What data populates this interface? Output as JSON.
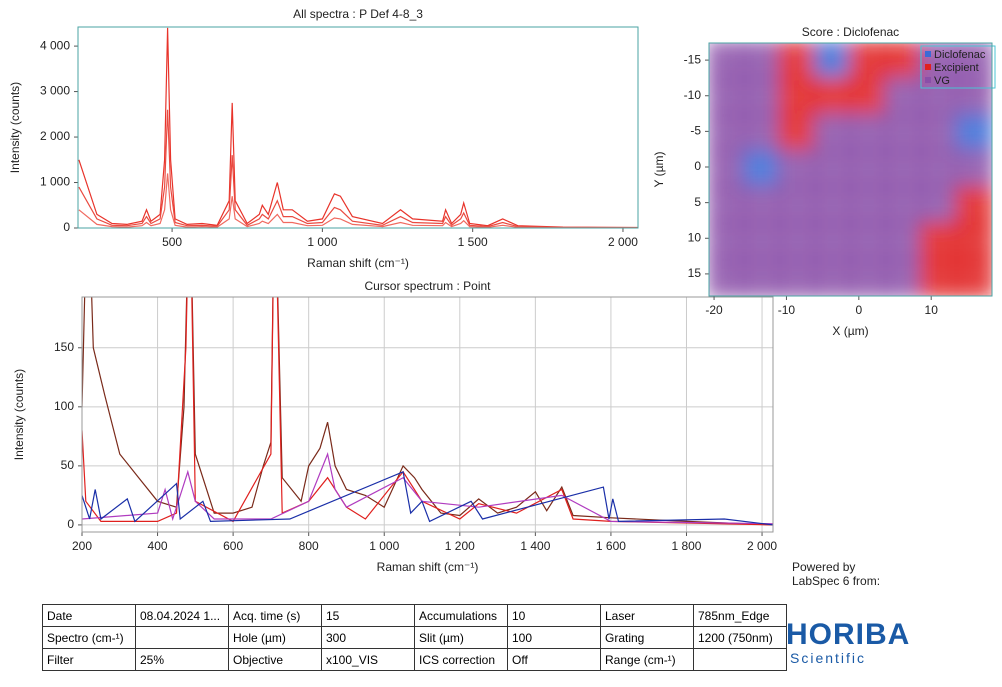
{
  "chart_data": [
    {
      "type": "line",
      "title": "All spectra : P Def 4-8_3",
      "xlabel": "Raman shift (cm⁻¹)",
      "ylabel": "Intensity (counts)",
      "xlim": [
        187,
        2050
      ],
      "ylim": [
        0,
        4420
      ],
      "xticks": [
        500,
        {
          "value": 1000,
          "label": "1 000"
        },
        {
          "value": 1500,
          "label": "1 500"
        },
        {
          "value": 2000,
          "label": "2 000"
        }
      ],
      "yticks": [
        0,
        {
          "value": 1000,
          "label": "1 000"
        },
        {
          "value": 2000,
          "label": "2 000"
        },
        {
          "value": 3000,
          "label": "3 000"
        },
        {
          "value": 4000,
          "label": "4 000"
        }
      ],
      "grid": false,
      "x": [
        190,
        250,
        300,
        350,
        400,
        415,
        430,
        460,
        475,
        485,
        495,
        510,
        550,
        600,
        650,
        690,
        700,
        710,
        750,
        790,
        800,
        820,
        850,
        870,
        900,
        950,
        1000,
        1040,
        1060,
        1100,
        1200,
        1260,
        1300,
        1400,
        1410,
        1430,
        1460,
        1470,
        1490,
        1550,
        1600,
        1650,
        1800,
        2050
      ],
      "series": [
        {
          "color": "#e8332a",
          "values": [
            1500,
            300,
            100,
            80,
            150,
            400,
            150,
            300,
            1500,
            4400,
            1500,
            200,
            80,
            100,
            60,
            600,
            2750,
            600,
            100,
            300,
            500,
            300,
            1000,
            400,
            400,
            150,
            200,
            750,
            700,
            250,
            100,
            400,
            200,
            150,
            400,
            100,
            300,
            550,
            100,
            50,
            200,
            50,
            20,
            10
          ]
        },
        {
          "color": "#ea4a40",
          "values": [
            900,
            200,
            60,
            50,
            100,
            250,
            100,
            200,
            900,
            2600,
            900,
            120,
            50,
            60,
            40,
            400,
            1600,
            400,
            60,
            200,
            300,
            200,
            600,
            250,
            250,
            100,
            120,
            450,
            400,
            150,
            60,
            250,
            120,
            100,
            250,
            60,
            200,
            330,
            60,
            30,
            120,
            30,
            12,
            5
          ]
        },
        {
          "color": "#f06a60",
          "values": [
            400,
            80,
            30,
            20,
            50,
            120,
            50,
            100,
            400,
            1200,
            400,
            60,
            20,
            30,
            20,
            200,
            700,
            200,
            30,
            100,
            150,
            100,
            300,
            120,
            120,
            50,
            60,
            220,
            200,
            80,
            30,
            120,
            60,
            50,
            120,
            30,
            100,
            160,
            30,
            15,
            60,
            15,
            6,
            3
          ]
        }
      ]
    },
    {
      "type": "line",
      "title": "Cursor spectrum : Point",
      "xlabel": "Raman shift (cm⁻¹)",
      "ylabel": "Intensity (counts)",
      "xlim": [
        200,
        2029
      ],
      "ylim": [
        -6,
        193
      ],
      "xticks": [
        200,
        400,
        600,
        800,
        {
          "value": 1000,
          "label": "1 000"
        },
        {
          "value": 1200,
          "label": "1 200"
        },
        {
          "value": 1400,
          "label": "1 400"
        },
        {
          "value": 1600,
          "label": "1 600"
        },
        {
          "value": 1800,
          "label": "1 800"
        },
        {
          "value": 2000,
          "label": "2 000"
        }
      ],
      "yticks": [
        0,
        50,
        100,
        150
      ],
      "grid": true,
      "series": [
        {
          "color": "#7a2a1a",
          "x": [
            200,
            215,
            230,
            260,
            300,
            350,
            400,
            450,
            470,
            485,
            500,
            550,
            600,
            650,
            680,
            700,
            710,
            730,
            780,
            800,
            830,
            850,
            870,
            900,
            950,
            1000,
            1050,
            1080,
            1100,
            1150,
            1200,
            1250,
            1300,
            1350,
            1400,
            1430,
            1470,
            1500,
            1600,
            1800,
            2029
          ],
          "values": [
            100,
            300,
            150,
            110,
            60,
            40,
            20,
            15,
            100,
            300,
            60,
            10,
            10,
            15,
            50,
            70,
            300,
            40,
            20,
            50,
            65,
            87,
            50,
            30,
            25,
            15,
            50,
            40,
            30,
            10,
            8,
            22,
            10,
            15,
            28,
            12,
            32,
            8,
            6,
            3,
            0
          ]
        },
        {
          "color": "#e0201e",
          "x": [
            200,
            210,
            250,
            400,
            450,
            475,
            485,
            500,
            600,
            700,
            710,
            730,
            800,
            850,
            900,
            950,
            1050,
            1100,
            1200,
            1250,
            1350,
            1470,
            1500,
            1600,
            2029
          ],
          "values": [
            80,
            20,
            3,
            3,
            10,
            150,
            300,
            20,
            3,
            60,
            300,
            10,
            20,
            40,
            15,
            5,
            45,
            20,
            5,
            18,
            10,
            30,
            5,
            3,
            0
          ]
        },
        {
          "color": "#b03cc0",
          "x": [
            200,
            400,
            420,
            440,
            480,
            500,
            550,
            700,
            800,
            850,
            870,
            900,
            1050,
            1100,
            1250,
            1470,
            1600,
            2029
          ],
          "values": [
            5,
            10,
            30,
            5,
            45,
            20,
            5,
            5,
            20,
            60,
            30,
            15,
            40,
            20,
            15,
            25,
            3,
            1
          ]
        },
        {
          "color": "#1a2fa8",
          "x": [
            200,
            220,
            235,
            250,
            320,
            340,
            450,
            460,
            520,
            540,
            750,
            1050,
            1070,
            1100,
            1120,
            1230,
            1260,
            1580,
            1595,
            1605,
            1620,
            1900,
            2029
          ],
          "values": [
            25,
            5,
            30,
            5,
            22,
            3,
            35,
            5,
            20,
            3,
            5,
            45,
            10,
            20,
            3,
            20,
            5,
            32,
            5,
            22,
            3,
            5,
            0
          ]
        }
      ]
    },
    {
      "type": "heatmap",
      "title": "Score : Diclofenac",
      "xlabel": "X (µm)",
      "ylabel": "Y (µm)",
      "xlim": [
        -20.7,
        18.4
      ],
      "ylim": [
        -17.4,
        18.1
      ],
      "invert_y": true,
      "xticks": [
        -20,
        -10,
        0,
        10
      ],
      "yticks": [
        -15,
        -10,
        -5,
        0,
        5,
        10,
        15
      ],
      "legend": [
        {
          "name": "Diclofenac",
          "color": "#3a6bd6"
        },
        {
          "name": "Excipient",
          "color": "#e0201e"
        },
        {
          "name": "VG",
          "color": "#8a4fa8"
        }
      ],
      "z": [
        [
          2,
          2,
          1,
          0,
          1,
          1,
          2,
          2
        ],
        [
          2,
          2,
          1,
          1,
          1,
          2,
          2,
          2
        ],
        [
          2,
          2,
          1,
          2,
          2,
          2,
          2,
          0
        ],
        [
          2,
          0,
          2,
          2,
          2,
          2,
          2,
          2
        ],
        [
          2,
          2,
          2,
          2,
          2,
          2,
          2,
          1
        ],
        [
          2,
          2,
          2,
          2,
          2,
          2,
          1,
          1
        ],
        [
          2,
          2,
          2,
          2,
          2,
          2,
          1,
          1
        ]
      ]
    }
  ],
  "table": {
    "rows": [
      [
        "Date",
        "08.04.2024 1...",
        "Acq. time (s)",
        "15",
        "Accumulations",
        "10",
        "Laser",
        "785nm_Edge"
      ],
      [
        "Spectro (cm-¹)",
        null,
        "Hole (µm)",
        "300",
        "Slit (µm)",
        "100",
        "Grating",
        "1200 (750nm)"
      ],
      [
        "Filter",
        "25%",
        "Objective",
        "x100_VIS",
        "ICS correction",
        "Off",
        "Range (cm-¹)",
        null
      ]
    ]
  },
  "footer": {
    "powered": "Powered by",
    "software": "LabSpec 6 from:",
    "logo": "HORIBA",
    "logo_sub": "Scientific"
  }
}
